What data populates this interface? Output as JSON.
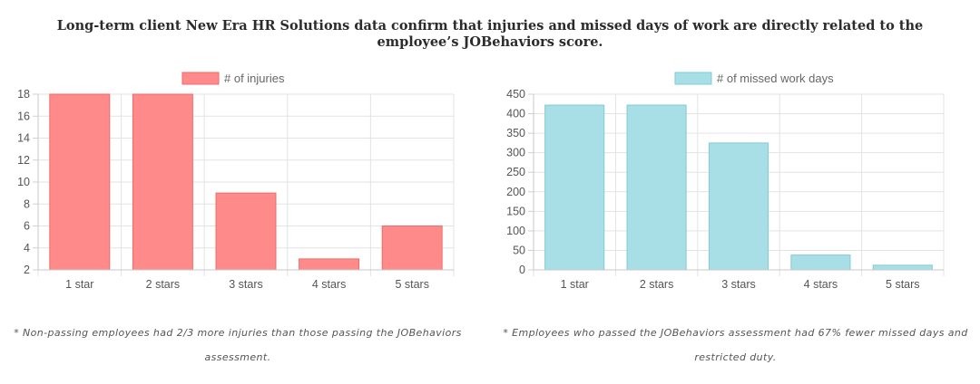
{
  "headline": "Long-term client New Era HR Solutions data confirm that injuries and missed days of work are directly related to the employee’s JOBehaviors score.",
  "chart_data": [
    {
      "type": "bar",
      "categories": [
        "1 star",
        "2 stars",
        "3 stars",
        "4 stars",
        "5 stars"
      ],
      "series": [
        {
          "name": "# of injuries",
          "values": [
            18,
            18,
            9,
            3,
            6
          ],
          "color": "#ff8a8a",
          "border": "#f26a6a"
        }
      ],
      "ylim": [
        2,
        18
      ],
      "yticks": [
        2,
        4,
        6,
        8,
        10,
        12,
        14,
        16,
        18
      ],
      "grid": true,
      "legend": "top-center"
    },
    {
      "type": "bar",
      "categories": [
        "1 star",
        "2 stars",
        "3 stars",
        "4 stars",
        "5 stars"
      ],
      "series": [
        {
          "name": "# of missed work days",
          "values": [
            422,
            422,
            325,
            38,
            12
          ],
          "color": "#a8dfe6",
          "border": "#80cbd6"
        }
      ],
      "ylim": [
        0,
        450
      ],
      "yticks": [
        0,
        50,
        100,
        150,
        200,
        250,
        300,
        350,
        400,
        450
      ],
      "grid": true,
      "legend": "top-center"
    }
  ],
  "notes": [
    "* Non-passing employees had 2/3 more injuries than those passing the JOBehaviors assessment.",
    "* Employees who passed the JOBehaviors assessment had 67% fewer missed days and restricted duty."
  ]
}
